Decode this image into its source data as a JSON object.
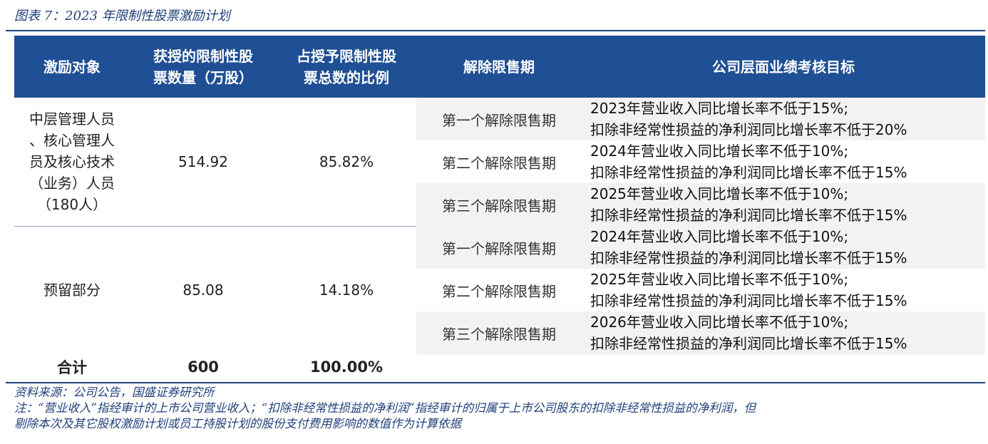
{
  "caption": "图表 7：2023 年限制性股票激励计划",
  "headers": {
    "col1": "激励对象",
    "col2_line1": "获授的限制性股",
    "col2_line2": "票数量（万股）",
    "col3_line1": "占授予限制性股",
    "col3_line2": "票总数的比例",
    "col4": "解除限售期",
    "col5": "公司层面业绩考核目标"
  },
  "group1": {
    "object_lines": [
      "中层管理人员",
      "、核心管理人",
      "员及核心技术",
      "（业务）人员",
      "（180人）"
    ],
    "shares": "514.92",
    "ratio": "85.82%",
    "rows": [
      {
        "period": "第一个解除限售期",
        "target_line1": "2023年营业收入同比增长率不低于15%;",
        "target_line2": "扣除非经常性损益的净利润同比增长率不低于20%"
      },
      {
        "period": "第二个解除限售期",
        "target_line1": "2024年营业收入同比增长率不低于10%;",
        "target_line2": "扣除非经常性损益的净利润同比增长率不低于15%"
      },
      {
        "period": "第三个解除限售期",
        "target_line1": "2025年营业收入同比增长率不低于10%;",
        "target_line2": "扣除非经常性损益的净利润同比增长率不低于15%"
      }
    ]
  },
  "group2": {
    "object": "预留部分",
    "shares": "85.08",
    "ratio": "14.18%",
    "rows": [
      {
        "period": "第一个解除限售期",
        "target_line1": "2024年营业收入同比增长率不低于10%;",
        "target_line2": "扣除非经常性损益的净利润同比增长率不低于15%"
      },
      {
        "period": "第二个解除限售期",
        "target_line1": "2025年营业收入同比增长率不低于10%;",
        "target_line2": "扣除非经常性损益的净利润同比增长率不低于15%"
      },
      {
        "period": "第三个解除限售期",
        "target_line1": "2026年营业收入同比增长率不低于10%;",
        "target_line2": "扣除非经常性损益的净利润同比增长率不低于15%"
      }
    ]
  },
  "total": {
    "label": "合计",
    "shares": "600",
    "ratio": "100.00%"
  },
  "notes": {
    "source": "资料来源：公司公告，国盛证券研究所",
    "line1": "注：“营业收入”指经审计的上市公司营业收入；“扣除非经常性损益的净利润”指经审计的归属于上市公司股东的扣除非经常性损益的净利润，但",
    "line2": "剔除本次及其它股权激励计划或员工持股计划的股份支付费用影响的数值作为计算依据"
  },
  "colors": {
    "header_bg": "#1f4f94",
    "accent": "#1f3f7a",
    "row_shade": "#f2f2f2"
  }
}
